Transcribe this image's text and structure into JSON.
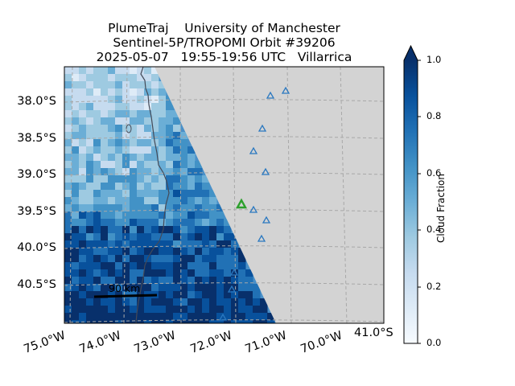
{
  "header": {
    "line1": "PlumeTraj    University of Manchester",
    "line2": "Sentinel-5P/TROPOMI Orbit #39206",
    "line3": "2025-05-07   19:55-19:56 UTC   Villarrica"
  },
  "map": {
    "lat_ticks": [
      "38.0°S",
      "38.5°S",
      "39.0°S",
      "39.5°S",
      "40.0°S",
      "40.5°S"
    ],
    "lon_ticks": [
      "75.0°W",
      "74.0°W",
      "73.0°W",
      "72.0°W",
      "71.0°W",
      "70.0°W"
    ],
    "extra_lat_tick": "41.0°S",
    "scalebar_label": "90 km",
    "land_color": "#d3d3d3",
    "grid_style": "dashed",
    "volcano_markers": "blue-triangles",
    "target_volcano": "Villarrica",
    "target_marker_color": "#2ca02c"
  },
  "colorbar": {
    "label": "Cloud Fraction",
    "ticks": [
      "0.0",
      "0.2",
      "0.4",
      "0.6",
      "0.8",
      "1.0"
    ],
    "colormap": "Blues",
    "range": [
      0.0,
      1.0
    ],
    "extend": "max"
  }
}
